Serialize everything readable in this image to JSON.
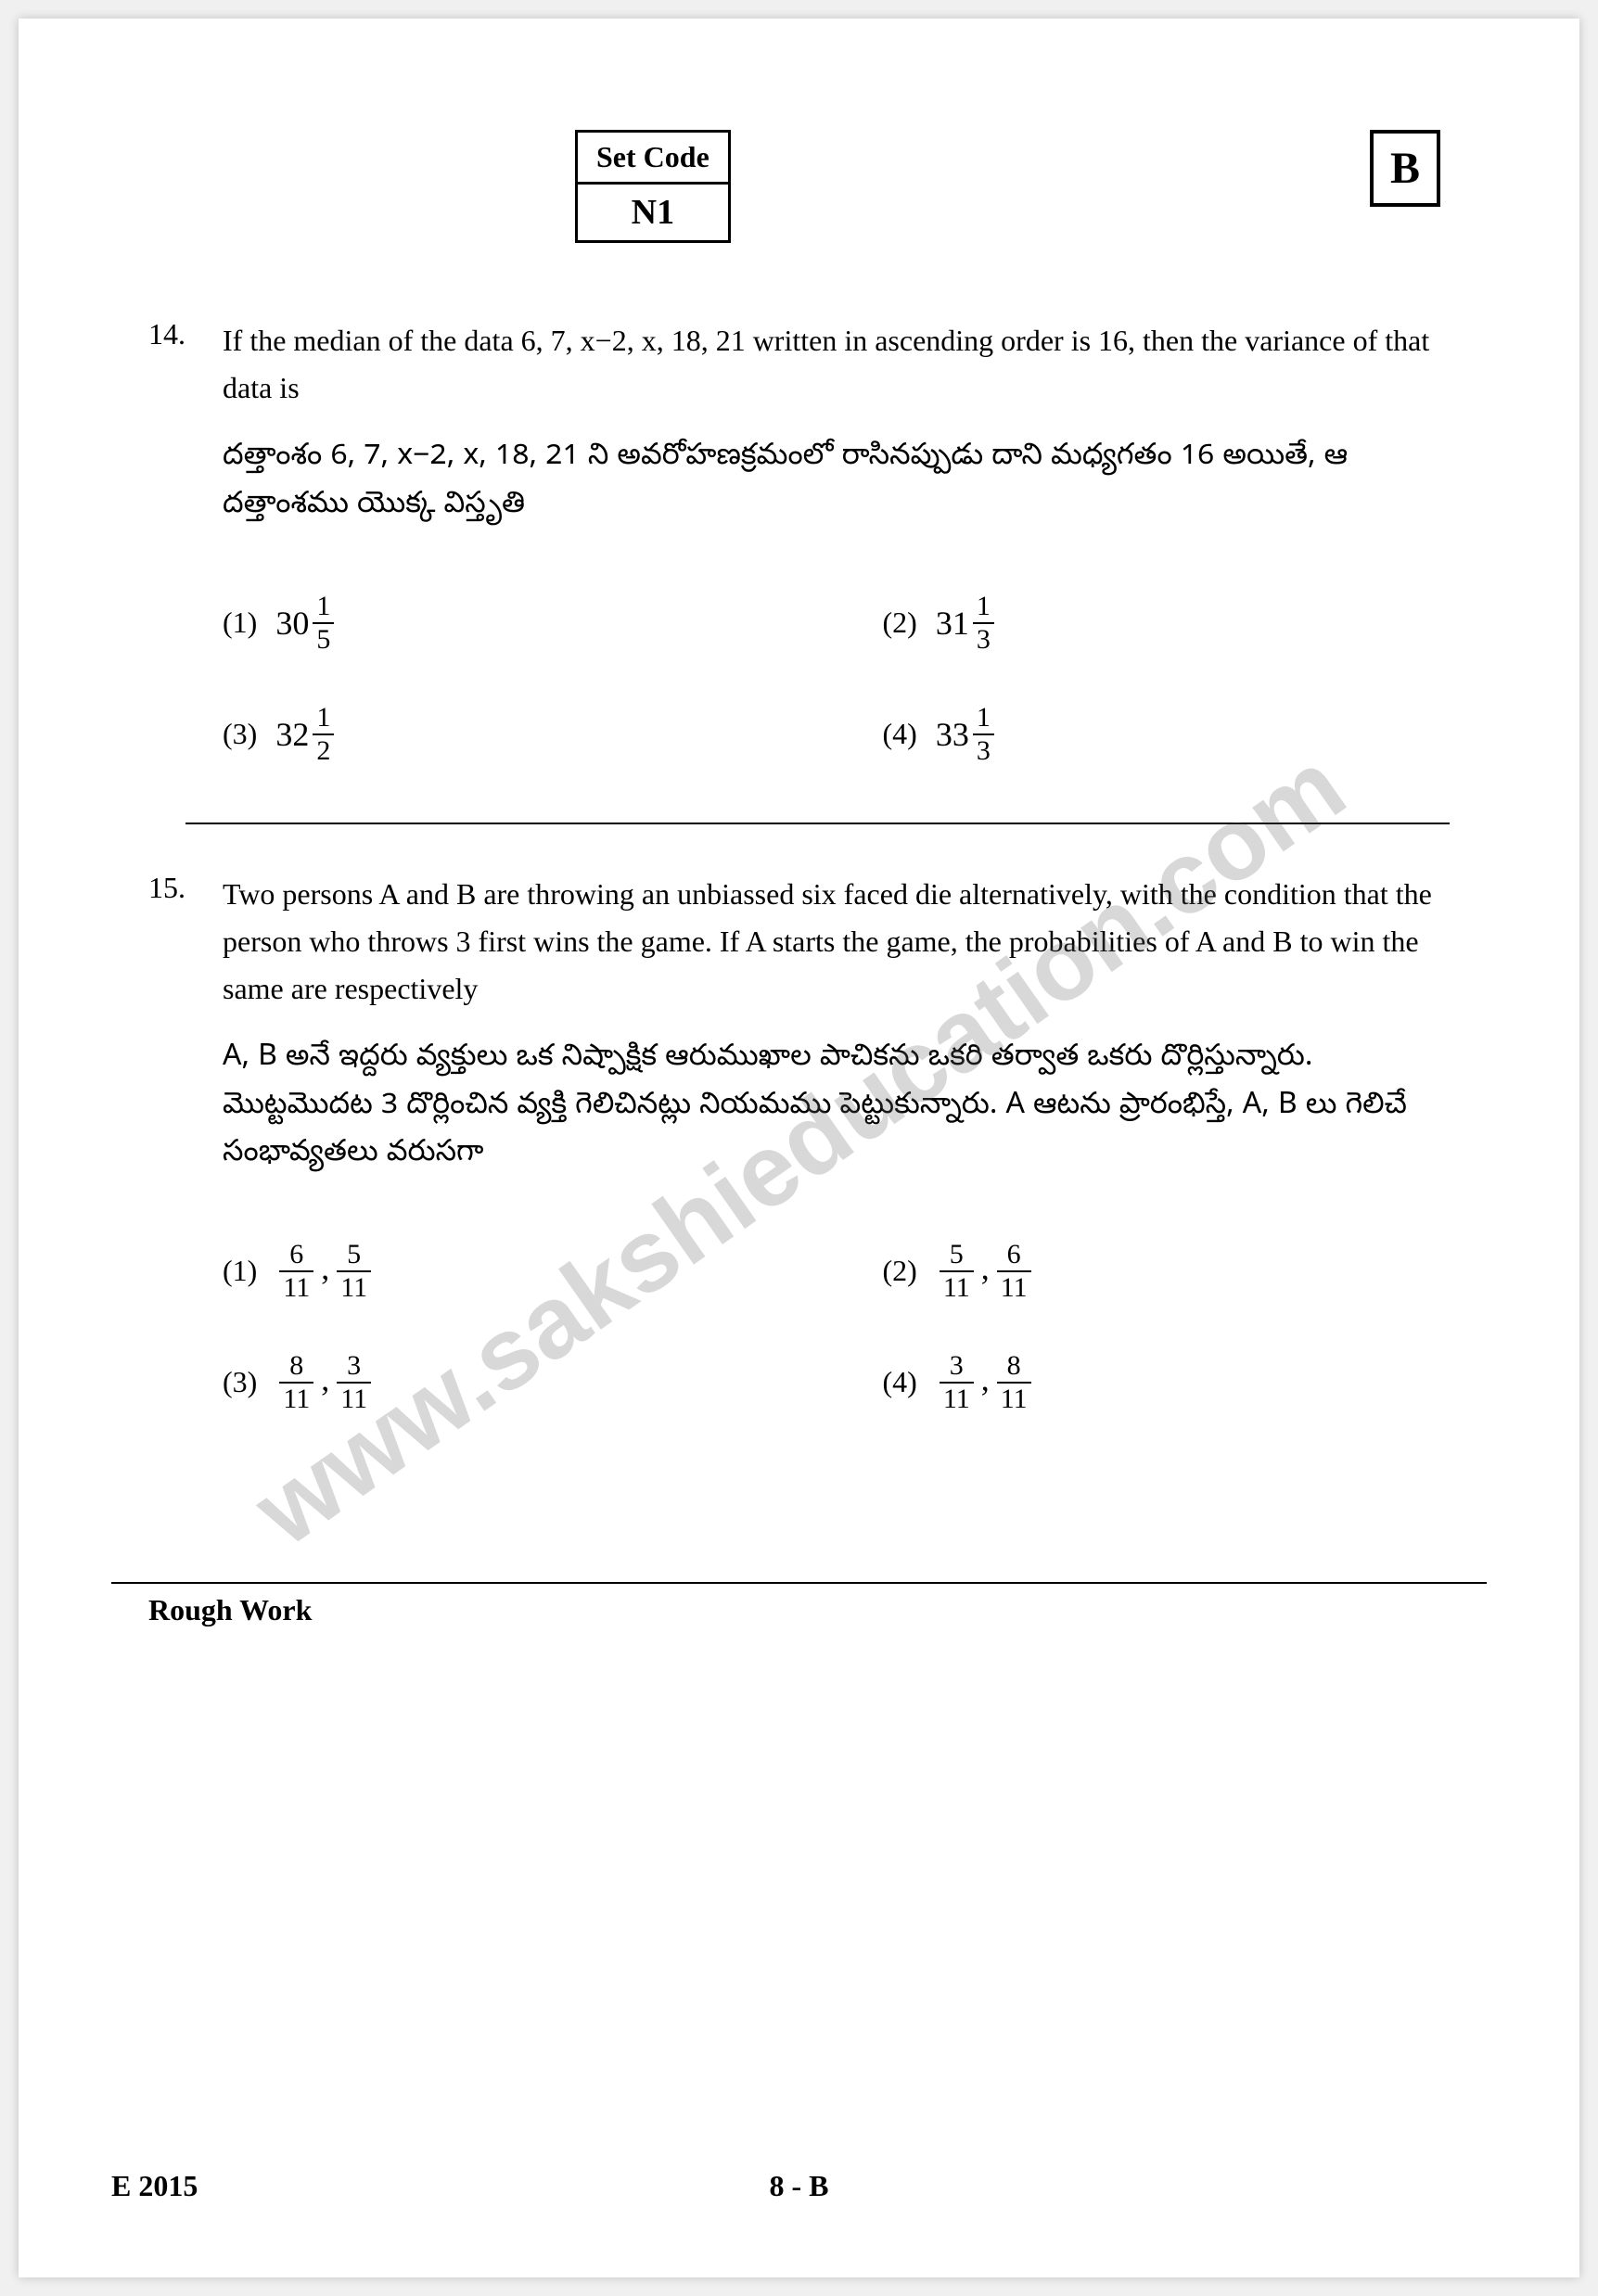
{
  "header": {
    "set_code_label": "Set Code",
    "set_code_value": "N1",
    "variant": "B"
  },
  "watermark": "www.sakshieducation.com",
  "questions": [
    {
      "number": "14.",
      "text_en": "If the median of the data 6, 7, x−2, x, 18, 21 written in ascending order is 16, then the variance of that data is",
      "text_te": "దత్తాంశం 6, 7, x−2, x, 18, 21 ని అవరోహణక్రమంలో రాసినప్పుడు దాని మధ్యగతం 16 అయితే, ఆ దత్తాంశము యొక్క విస్తృతి",
      "options": [
        {
          "num": "(1)",
          "whole": "30",
          "frac_num": "1",
          "frac_den": "5"
        },
        {
          "num": "(2)",
          "whole": "31",
          "frac_num": "1",
          "frac_den": "3"
        },
        {
          "num": "(3)",
          "whole": "32",
          "frac_num": "1",
          "frac_den": "2"
        },
        {
          "num": "(4)",
          "whole": "33",
          "frac_num": "1",
          "frac_den": "3"
        }
      ]
    },
    {
      "number": "15.",
      "text_en": "Two persons A and B are throwing an unbiassed six faced die alternatively, with the condition that the person who throws 3 first wins the game. If A starts the game, the probabilities of A and B to win the same are respectively",
      "text_te": "A, B అనే ఇద్దరు వ్యక్తులు ఒక నిష్పాక్షిక ఆరుముఖాల పాచికను ఒకరి తర్వాత ఒకరు దొర్లిస్తున్నారు. మొట్టమొదట 3 దొర్లించిన వ్యక్తి గెలిచినట్లు నియమము పెట్టుకున్నారు. A ఆటను ప్రారంభిస్తే, A, B లు గెలిచే సంభావ్యతలు వరుసగా",
      "options": [
        {
          "num": "(1)",
          "f1_num": "6",
          "f1_den": "11",
          "f2_num": "5",
          "f2_den": "11"
        },
        {
          "num": "(2)",
          "f1_num": "5",
          "f1_den": "11",
          "f2_num": "6",
          "f2_den": "11"
        },
        {
          "num": "(3)",
          "f1_num": "8",
          "f1_den": "11",
          "f2_num": "3",
          "f2_den": "11"
        },
        {
          "num": "(4)",
          "f1_num": "3",
          "f1_den": "11",
          "f2_num": "8",
          "f2_den": "11"
        }
      ]
    }
  ],
  "rough_work": "Rough Work",
  "footer": {
    "left": "E 2015",
    "center": "8 - B"
  }
}
